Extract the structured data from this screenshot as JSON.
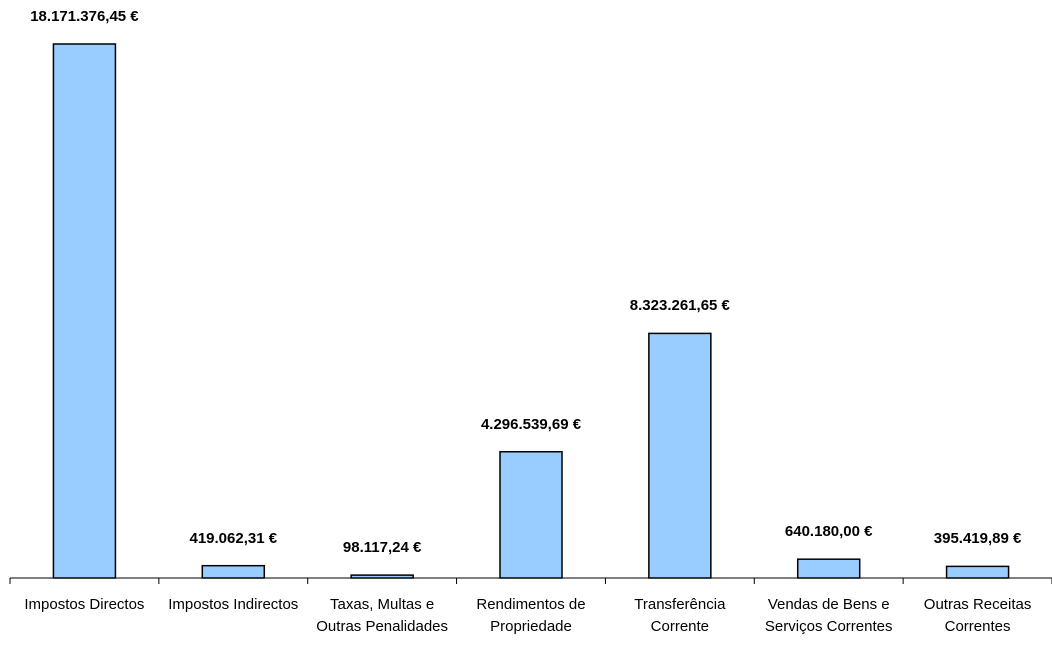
{
  "chart_data": {
    "type": "bar",
    "categories": [
      "Impostos Directos",
      "Impostos Indirectos",
      "Taxas, Multas e Outras Penalidades",
      "Rendimentos de Propriedade",
      "Transferência Corrente",
      "Vendas de Bens e Serviços Correntes",
      "Outras Receitas Correntes"
    ],
    "values": [
      18171376.45,
      419062.31,
      98117.24,
      4296539.69,
      8323261.65,
      640180.0,
      395419.89
    ],
    "value_labels": [
      "18.171.376,45 €",
      "419.062,31 €",
      "98.117,24 €",
      "4.296.539,69 €",
      "8.323.261,65 €",
      "640.180,00 €",
      "395.419,89 €"
    ],
    "color": "#99ccff"
  }
}
